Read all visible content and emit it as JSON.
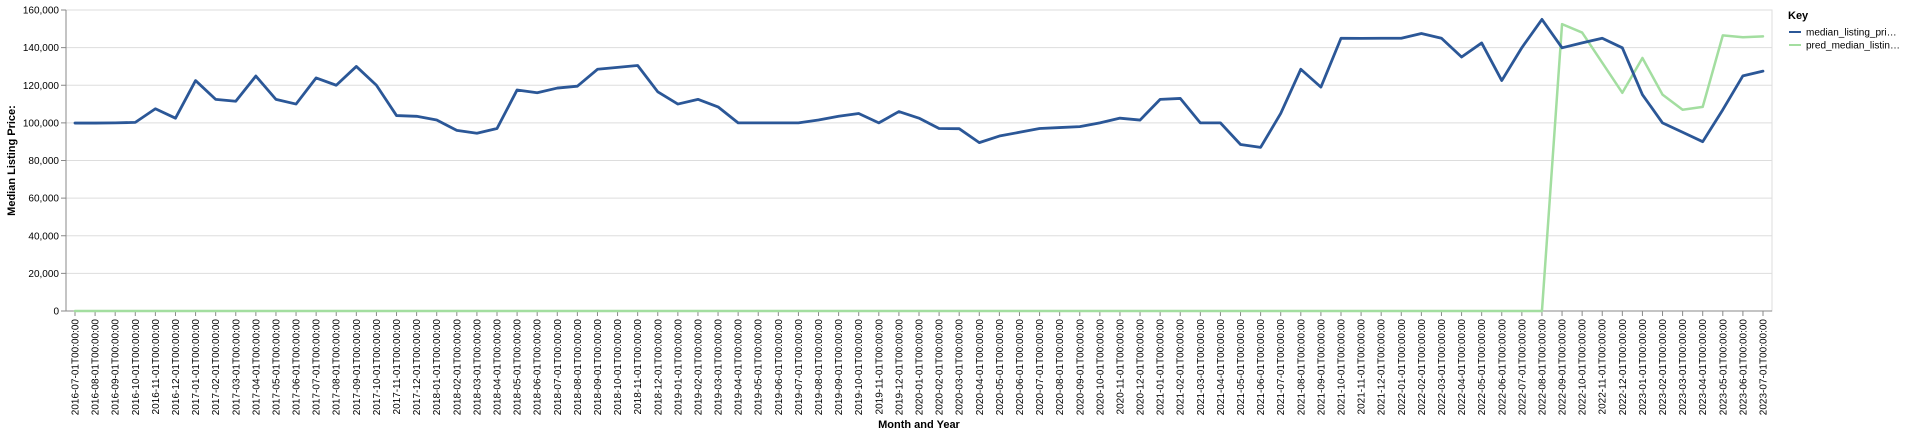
{
  "chart_data": {
    "type": "line",
    "xlabel": "Month and Year",
    "ylabel": "Median Listing Price:",
    "ylim": [
      0,
      160000
    ],
    "yticks": [
      0,
      20000,
      40000,
      60000,
      80000,
      100000,
      120000,
      140000,
      160000
    ],
    "ytick_labels": [
      "0",
      "20,000",
      "40,000",
      "60,000",
      "80,000",
      "100,000",
      "120,000",
      "140,000",
      "160,000"
    ],
    "grid": true,
    "legend": {
      "title": "Key",
      "placement": "top-right"
    },
    "x": [
      "2016-07-01T00:00:00",
      "2016-08-01T00:00:00",
      "2016-09-01T00:00:00",
      "2016-10-01T00:00:00",
      "2016-11-01T00:00:00",
      "2016-12-01T00:00:00",
      "2017-01-01T00:00:00",
      "2017-02-01T00:00:00",
      "2017-03-01T00:00:00",
      "2017-04-01T00:00:00",
      "2017-05-01T00:00:00",
      "2017-06-01T00:00:00",
      "2017-07-01T00:00:00",
      "2017-08-01T00:00:00",
      "2017-09-01T00:00:00",
      "2017-10-01T00:00:00",
      "2017-11-01T00:00:00",
      "2017-12-01T00:00:00",
      "2018-01-01T00:00:00",
      "2018-02-01T00:00:00",
      "2018-03-01T00:00:00",
      "2018-04-01T00:00:00",
      "2018-05-01T00:00:00",
      "2018-06-01T00:00:00",
      "2018-07-01T00:00:00",
      "2018-08-01T00:00:00",
      "2018-09-01T00:00:00",
      "2018-10-01T00:00:00",
      "2018-11-01T00:00:00",
      "2018-12-01T00:00:00",
      "2019-01-01T00:00:00",
      "2019-02-01T00:00:00",
      "2019-03-01T00:00:00",
      "2019-04-01T00:00:00",
      "2019-05-01T00:00:00",
      "2019-06-01T00:00:00",
      "2019-07-01T00:00:00",
      "2019-08-01T00:00:00",
      "2019-09-01T00:00:00",
      "2019-10-01T00:00:00",
      "2019-11-01T00:00:00",
      "2019-12-01T00:00:00",
      "2020-01-01T00:00:00",
      "2020-02-01T00:00:00",
      "2020-03-01T00:00:00",
      "2020-04-01T00:00:00",
      "2020-05-01T00:00:00",
      "2020-06-01T00:00:00",
      "2020-07-01T00:00:00",
      "2020-08-01T00:00:00",
      "2020-09-01T00:00:00",
      "2020-10-01T00:00:00",
      "2020-11-01T00:00:00",
      "2020-12-01T00:00:00",
      "2021-01-01T00:00:00",
      "2021-02-01T00:00:00",
      "2021-03-01T00:00:00",
      "2021-04-01T00:00:00",
      "2021-05-01T00:00:00",
      "2021-06-01T00:00:00",
      "2021-07-01T00:00:00",
      "2021-08-01T00:00:00",
      "2021-09-01T00:00:00",
      "2021-10-01T00:00:00",
      "2021-11-01T00:00:00",
      "2021-12-01T00:00:00",
      "2022-01-01T00:00:00",
      "2022-02-01T00:00:00",
      "2022-03-01T00:00:00",
      "2022-04-01T00:00:00",
      "2022-05-01T00:00:00",
      "2022-06-01T00:00:00",
      "2022-07-01T00:00:00",
      "2022-08-01T00:00:00",
      "2022-09-01T00:00:00",
      "2022-10-01T00:00:00",
      "2022-11-01T00:00:00",
      "2022-12-01T00:00:00",
      "2023-01-01T00:00:00",
      "2023-02-01T00:00:00",
      "2023-03-01T00:00:00",
      "2023-04-01T00:00:00",
      "2023-05-01T00:00:00",
      "2023-06-01T00:00:00",
      "2023-07-01T00:00:00"
    ],
    "series": [
      {
        "name": "median_listing_pri…",
        "color": "#2b5797",
        "values": [
          99900,
          99900,
          100000,
          100250,
          107500,
          102500,
          122500,
          112500,
          111500,
          124900,
          112500,
          110000,
          123900,
          120000,
          130000,
          120000,
          103900,
          103500,
          101500,
          96000,
          94500,
          97000,
          117500,
          116000,
          118500,
          119500,
          128500,
          129500,
          130500,
          116500,
          110000,
          112500,
          108500,
          100000,
          100000,
          100000,
          100000,
          101500,
          103500,
          105000,
          100000,
          106000,
          102500,
          97000,
          96900,
          89500,
          93000,
          95000,
          97000,
          97500,
          98000,
          100000,
          102500,
          101500,
          112500,
          113000,
          100000,
          100000,
          88500,
          87000,
          105000,
          128500,
          119000,
          145000,
          144900,
          145000,
          145000,
          147500,
          145000,
          135000,
          142500,
          122500,
          140000,
          155000,
          139900,
          142500,
          145000,
          139900,
          115000,
          100000,
          95000,
          90000,
          107000,
          125000,
          127500
        ]
      },
      {
        "name": "pred_median_listin…",
        "color": "#a3dea0",
        "values": [
          0,
          0,
          0,
          0,
          0,
          0,
          0,
          0,
          0,
          0,
          0,
          0,
          0,
          0,
          0,
          0,
          0,
          0,
          0,
          0,
          0,
          0,
          0,
          0,
          0,
          0,
          0,
          0,
          0,
          0,
          0,
          0,
          0,
          0,
          0,
          0,
          0,
          0,
          0,
          0,
          0,
          0,
          0,
          0,
          0,
          0,
          0,
          0,
          0,
          0,
          0,
          0,
          0,
          0,
          0,
          0,
          0,
          0,
          0,
          0,
          0,
          0,
          0,
          0,
          0,
          0,
          0,
          0,
          0,
          0,
          0,
          0,
          0,
          0,
          152500,
          148000,
          132000,
          116000,
          134500,
          115000,
          107000,
          108500,
          146500,
          145500,
          146000
        ]
      }
    ]
  }
}
